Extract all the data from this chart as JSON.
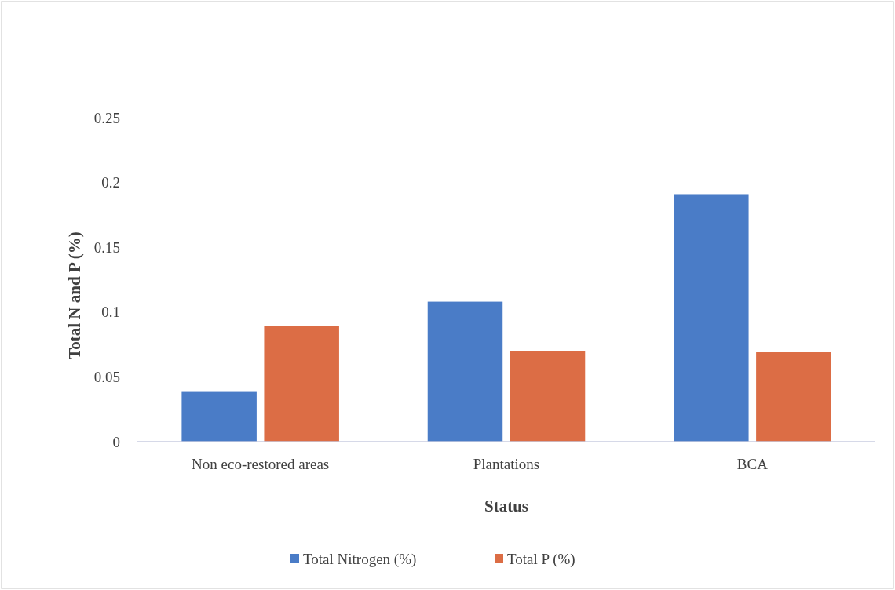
{
  "chart_data": {
    "type": "bar",
    "xlabel": "Status",
    "ylabel": "Total N and P (%)",
    "categories": [
      "Non eco-restored areas",
      "Plantations",
      "BCA"
    ],
    "series": [
      {
        "name": "Total Nitrogen (%)",
        "color": "#4a7cc7",
        "values": [
          0.039,
          0.108,
          0.191
        ]
      },
      {
        "name": "Total P (%)",
        "color": "#dc6d45",
        "values": [
          0.089,
          0.07,
          0.069
        ]
      }
    ],
    "ylim": [
      0,
      0.25
    ],
    "yticks": [
      {
        "value": 0,
        "label": "0"
      },
      {
        "value": 0.05,
        "label": "0.05"
      },
      {
        "value": 0.1,
        "label": "0.1"
      },
      {
        "value": 0.15,
        "label": "0.15"
      },
      {
        "value": 0.2,
        "label": "0.2"
      },
      {
        "value": 0.25,
        "label": "0.25"
      }
    ],
    "grid": false,
    "legend": "bottom"
  }
}
